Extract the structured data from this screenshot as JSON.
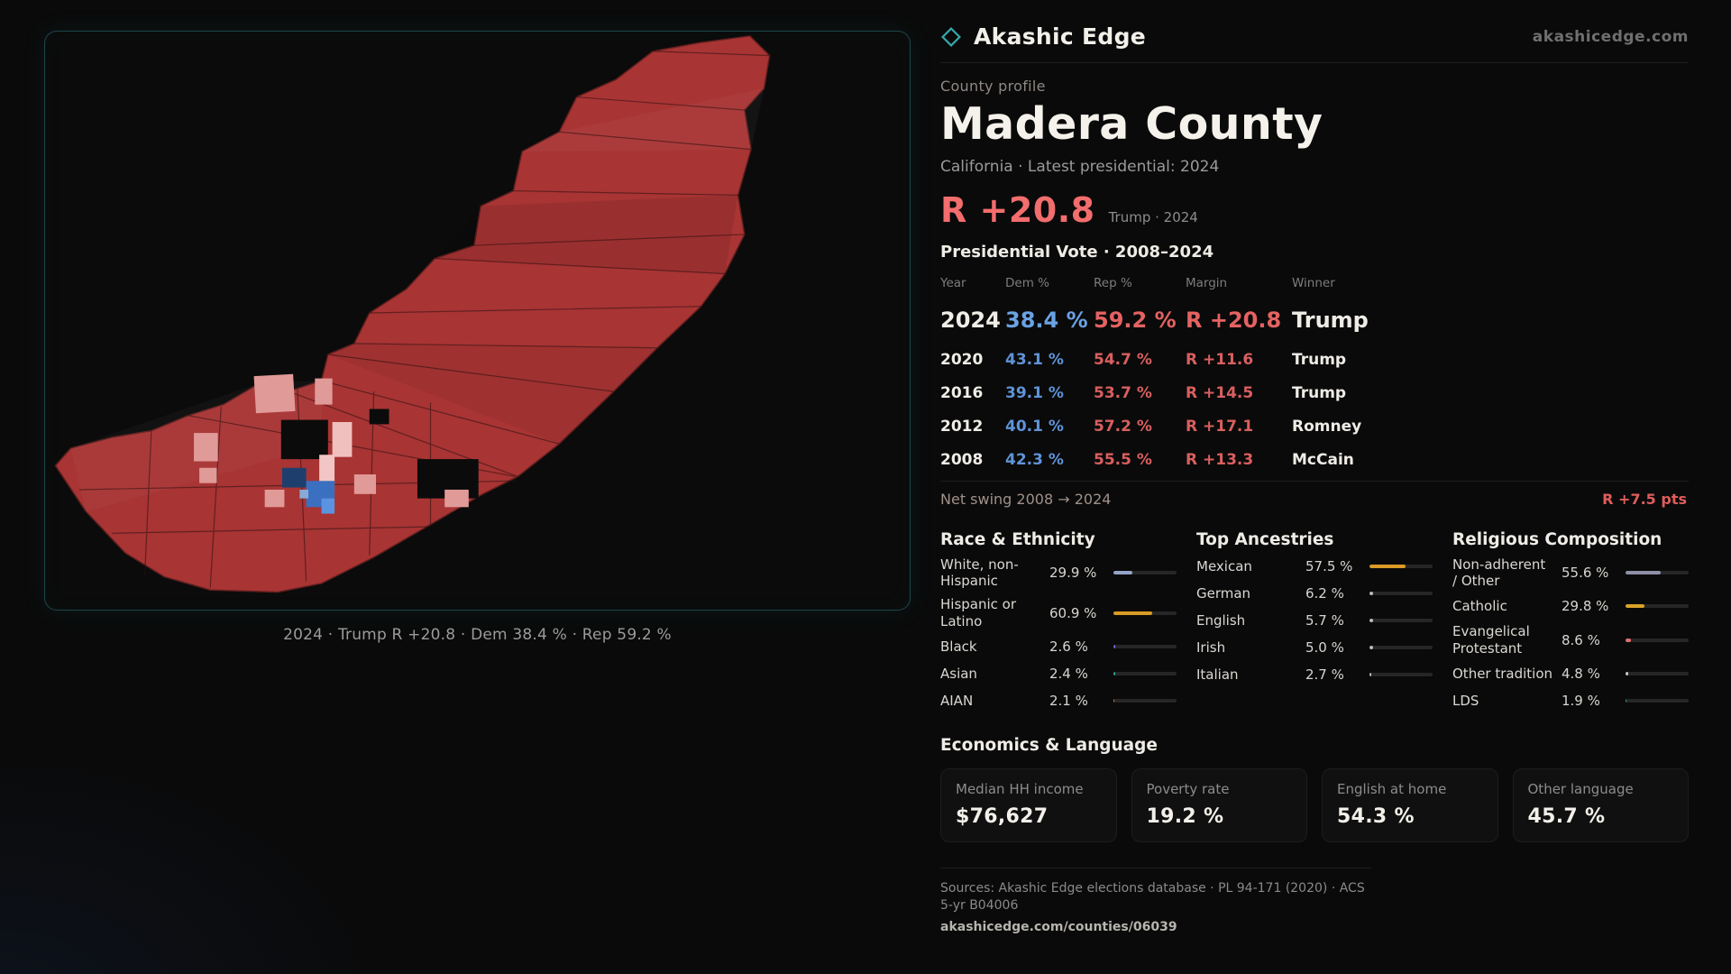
{
  "colors": {
    "accent_red": "#f26d6d",
    "accent_blue": "#5f93d6",
    "teal": "#35a8ab",
    "map_red": "#a83434"
  },
  "header": {
    "brand": "Akashic Edge",
    "site": "akashicedge.com"
  },
  "map": {
    "caption": "2024 · Trump R +20.8 · Dem 38.4 % · Rep 59.2 %"
  },
  "profile": {
    "kicker": "County profile",
    "title": "Madera County",
    "subtitle": "California · Latest presidential: 2024",
    "headline_margin": "R +20.8",
    "headline_note": "Trump · 2024"
  },
  "vote_table": {
    "title": "Presidential Vote · 2008–2024",
    "headers": {
      "year": "Year",
      "dem": "Dem %",
      "rep": "Rep %",
      "margin": "Margin",
      "winner": "Winner"
    },
    "rows": [
      {
        "year": "2024",
        "dem": "38.4 %",
        "rep": "59.2 %",
        "margin": "R +20.8",
        "winner": "Trump",
        "highlight": true
      },
      {
        "year": "2020",
        "dem": "43.1 %",
        "rep": "54.7 %",
        "margin": "R +11.6",
        "winner": "Trump"
      },
      {
        "year": "2016",
        "dem": "39.1 %",
        "rep": "53.7 %",
        "margin": "R +14.5",
        "winner": "Trump"
      },
      {
        "year": "2012",
        "dem": "40.1 %",
        "rep": "57.2 %",
        "margin": "R +17.1",
        "winner": "Romney"
      },
      {
        "year": "2008",
        "dem": "42.3 %",
        "rep": "55.5 %",
        "margin": "R +13.3",
        "winner": "McCain"
      }
    ],
    "net_swing_label": "Net swing 2008 → 2024",
    "net_swing_value": "R +7.5 pts"
  },
  "race": {
    "title": "Race & Ethnicity",
    "rows": [
      {
        "label": "White, non-Hispanic",
        "value": "29.9 %",
        "pct": 29.9,
        "color": "#94a3c8"
      },
      {
        "label": "Hispanic or Latino",
        "value": "60.9 %",
        "pct": 60.9,
        "color": "#d99b26"
      },
      {
        "label": "Black",
        "value": "2.6 %",
        "pct": 2.6,
        "color": "#7b61d6"
      },
      {
        "label": "Asian",
        "value": "2.4 %",
        "pct": 2.4,
        "color": "#2fa394"
      },
      {
        "label": "AIAN",
        "value": "2.1 %",
        "pct": 2.1,
        "color": "#d97f2e"
      }
    ]
  },
  "ancestries": {
    "title": "Top Ancestries",
    "rows": [
      {
        "label": "Mexican",
        "value": "57.5 %",
        "pct": 57.5,
        "color": "#d99b26"
      },
      {
        "label": "German",
        "value": "6.2 %",
        "pct": 6.2,
        "color": "#b8bcc2"
      },
      {
        "label": "English",
        "value": "5.7 %",
        "pct": 5.7,
        "color": "#b8bcc2"
      },
      {
        "label": "Irish",
        "value": "5.0 %",
        "pct": 5.0,
        "color": "#b8bcc2"
      },
      {
        "label": "Italian",
        "value": "2.7 %",
        "pct": 2.7,
        "color": "#b8bcc2"
      }
    ]
  },
  "religion": {
    "title": "Religious Composition",
    "rows": [
      {
        "label": "Non-adherent / Other",
        "value": "55.6 %",
        "pct": 55.6,
        "color": "#8e90a8"
      },
      {
        "label": "Catholic",
        "value": "29.8 %",
        "pct": 29.8,
        "color": "#d9a32a"
      },
      {
        "label": "Evangelical Protestant",
        "value": "8.6 %",
        "pct": 8.6,
        "color": "#e06e6e"
      },
      {
        "label": "Other tradition",
        "value": "4.8 %",
        "pct": 4.8,
        "color": "#c8cbd0"
      },
      {
        "label": "LDS",
        "value": "1.9 %",
        "pct": 1.9,
        "color": "#2aa198"
      }
    ]
  },
  "economics": {
    "title": "Economics & Language",
    "stats": [
      {
        "label": "Median HH income",
        "value": "$76,627"
      },
      {
        "label": "Poverty rate",
        "value": "19.2 %"
      },
      {
        "label": "English at home",
        "value": "54.3 %"
      },
      {
        "label": "Other language",
        "value": "45.7 %"
      }
    ]
  },
  "footer": {
    "sources": "Sources: Akashic Edge elections database · PL 94-171 (2020) · ACS 5-yr B04006",
    "permalink": "akashicedge.com/counties/06039"
  }
}
